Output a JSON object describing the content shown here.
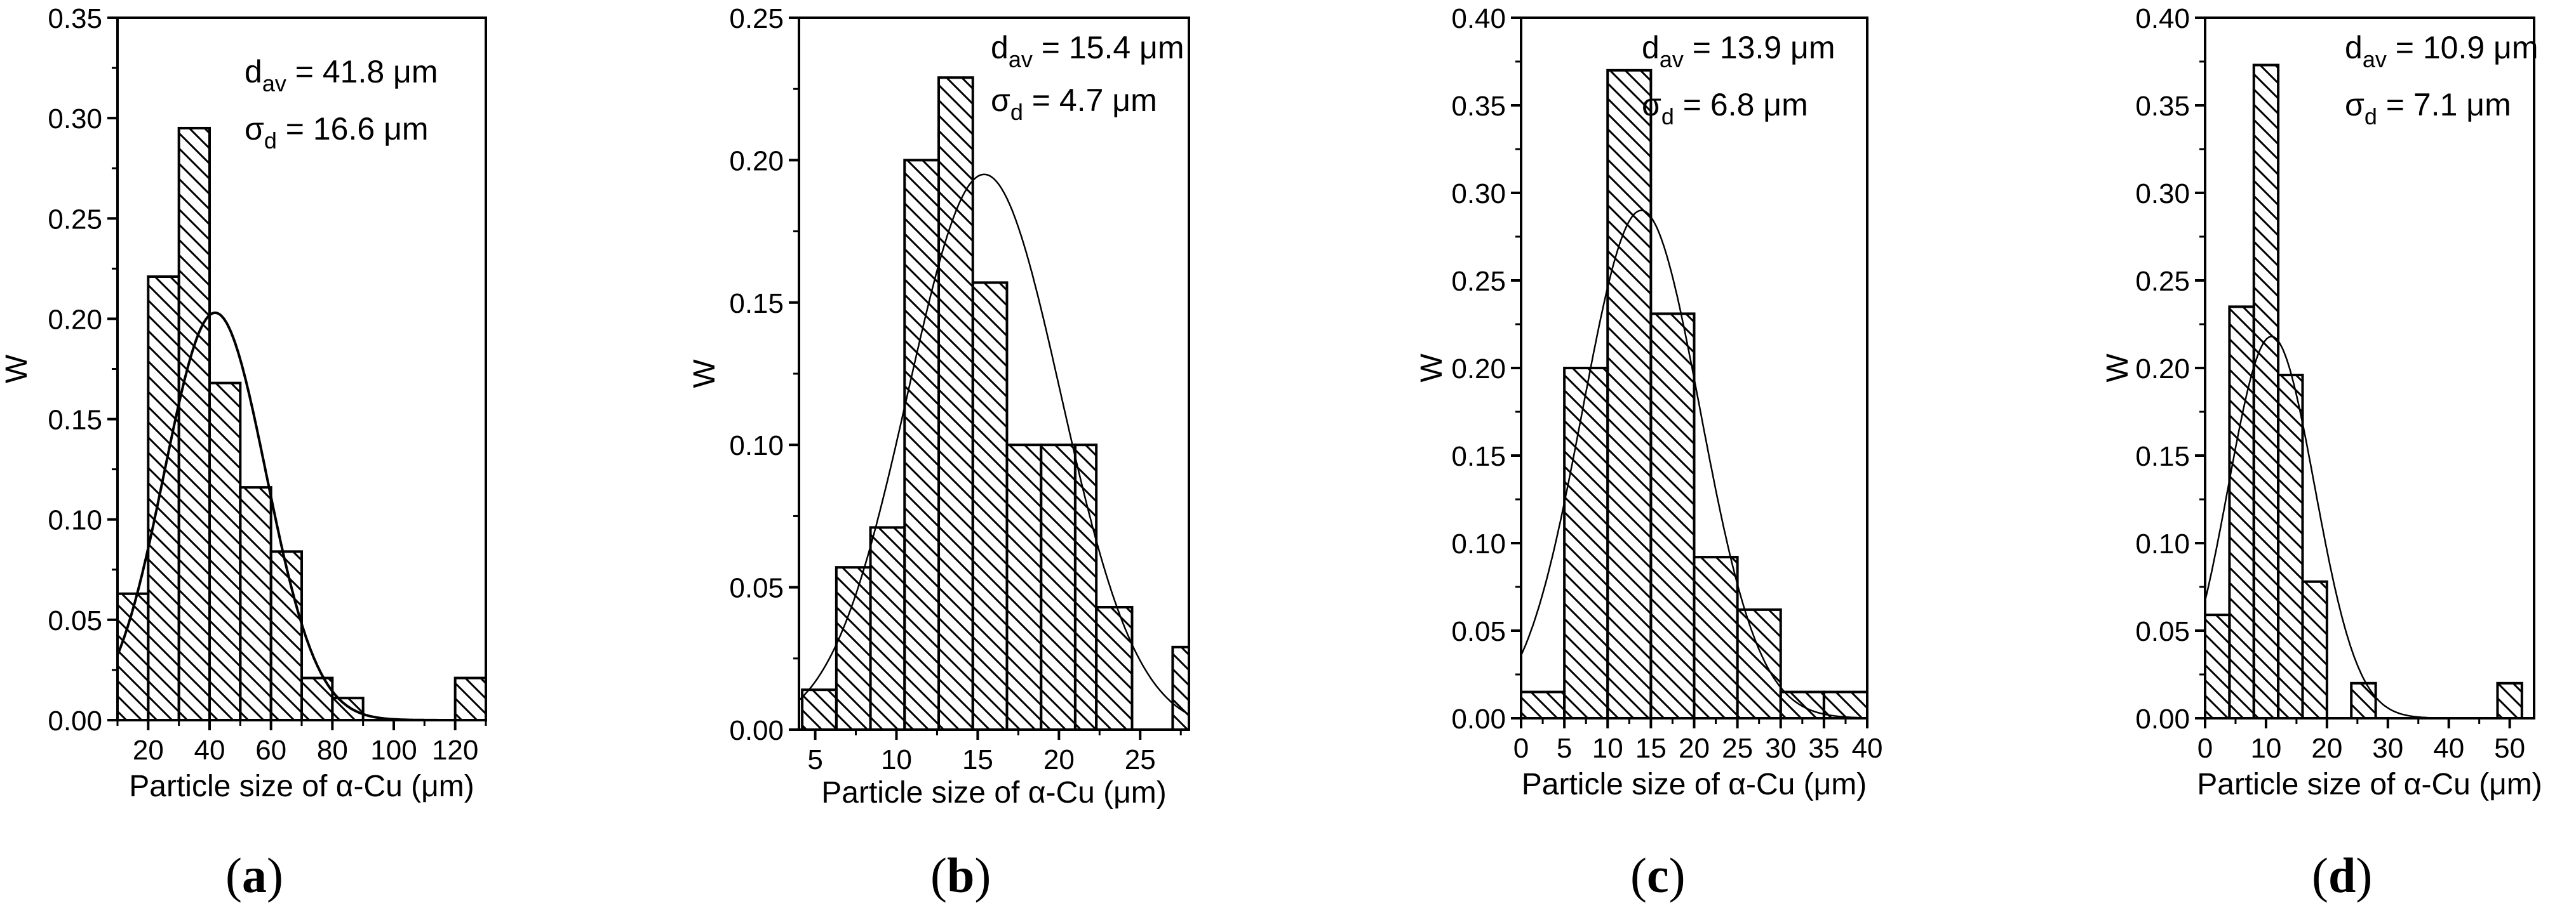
{
  "figure": {
    "panel_labels": [
      {
        "open": "(",
        "letter": "a",
        "close": ")"
      },
      {
        "open": "(",
        "letter": "b",
        "close": ")"
      },
      {
        "open": "(",
        "letter": "c",
        "close": ")"
      },
      {
        "open": "(",
        "letter": "d",
        "close": ")"
      }
    ]
  },
  "chart_data": [
    {
      "type": "bar",
      "panel": "a",
      "xlabel": "Particle size of α-Cu (μm)",
      "ylabel": "W",
      "xlim": [
        10,
        130
      ],
      "ylim": [
        0,
        0.35
      ],
      "xticks": [
        20,
        40,
        60,
        80,
        100,
        120
      ],
      "yticks": [
        0.0,
        0.05,
        0.1,
        0.15,
        0.2,
        0.25,
        0.3,
        0.35
      ],
      "ytick_labels": [
        "0.00",
        "0.05",
        "0.10",
        "0.15",
        "0.20",
        "0.25",
        "0.30",
        "0.35"
      ],
      "bins": [
        [
          10,
          20
        ],
        [
          20,
          30
        ],
        [
          30,
          40
        ],
        [
          40,
          50
        ],
        [
          50,
          60
        ],
        [
          60,
          70
        ],
        [
          70,
          80
        ],
        [
          80,
          90
        ],
        [
          120,
          130
        ]
      ],
      "values": [
        0.063,
        0.221,
        0.295,
        0.168,
        0.116,
        0.084,
        0.021,
        0.011,
        0.021
      ],
      "fit": {
        "type": "gaussian",
        "mean": 41.8,
        "sigma": 16.6,
        "peak": 0.203
      },
      "annotations": [
        {
          "main": "d",
          "sub": "av",
          "text": " = 41.8 μm"
        },
        {
          "main": "σ",
          "sub": "d",
          "text": " = 16.6 μm"
        }
      ]
    },
    {
      "type": "bar",
      "panel": "b",
      "xlabel": "Particle size of α-Cu (μm)",
      "ylabel": "W",
      "xlim": [
        4,
        28
      ],
      "ylim": [
        0,
        0.25
      ],
      "xticks": [
        5,
        10,
        15,
        20,
        25
      ],
      "yticks": [
        0.0,
        0.05,
        0.1,
        0.15,
        0.2,
        0.25
      ],
      "ytick_labels": [
        "0.00",
        "0.05",
        "0.10",
        "0.15",
        "0.20",
        "0.25"
      ],
      "bins": [
        [
          4.2,
          6.3
        ],
        [
          6.3,
          8.4
        ],
        [
          8.4,
          10.5
        ],
        [
          10.5,
          12.6
        ],
        [
          12.6,
          14.7
        ],
        [
          14.7,
          16.8
        ],
        [
          16.8,
          18.9
        ],
        [
          18.9,
          21.0
        ],
        [
          21.0,
          22.3
        ],
        [
          22.3,
          24.5
        ],
        [
          27.0,
          28.0
        ]
      ],
      "values": [
        0.014,
        0.057,
        0.071,
        0.2,
        0.229,
        0.157,
        0.1,
        0.1,
        0.1,
        0.043,
        0.029
      ],
      "fit": {
        "type": "gaussian",
        "mean": 15.4,
        "sigma": 4.7,
        "peak": 0.195
      },
      "annotations": [
        {
          "main": "d",
          "sub": "av",
          "text": " = 15.4 μm"
        },
        {
          "main": "σ",
          "sub": "d",
          "text": " = 4.7 μm"
        }
      ]
    },
    {
      "type": "bar",
      "panel": "c",
      "xlabel": "Particle size of α-Cu (μm)",
      "ylabel": "W",
      "xlim": [
        0,
        40
      ],
      "ylim": [
        0,
        0.4
      ],
      "xticks": [
        0,
        5,
        10,
        15,
        20,
        25,
        30,
        35,
        40
      ],
      "yticks": [
        0.0,
        0.05,
        0.1,
        0.15,
        0.2,
        0.25,
        0.3,
        0.35,
        0.4
      ],
      "ytick_labels": [
        "0.00",
        "0.05",
        "0.10",
        "0.15",
        "0.20",
        "0.25",
        "0.30",
        "0.35",
        "0.40"
      ],
      "bins": [
        [
          0,
          5
        ],
        [
          5,
          10
        ],
        [
          10,
          15
        ],
        [
          15,
          20
        ],
        [
          20,
          25
        ],
        [
          25,
          30
        ],
        [
          30,
          35
        ],
        [
          35,
          40
        ]
      ],
      "values": [
        0.015,
        0.2,
        0.37,
        0.231,
        0.092,
        0.062,
        0.015,
        0.015
      ],
      "fit": {
        "type": "gaussian",
        "mean": 13.9,
        "sigma": 6.8,
        "peak": 0.29
      },
      "annotations": [
        {
          "main": "d",
          "sub": "av",
          "text": " = 13.9 μm"
        },
        {
          "main": "σ",
          "sub": "d",
          "text": " = 6.8 μm"
        }
      ]
    },
    {
      "type": "bar",
      "panel": "d",
      "xlabel": "Particle size of α-Cu (μm)",
      "ylabel": "W",
      "xlim": [
        0,
        54
      ],
      "ylim": [
        0,
        0.4
      ],
      "xticks": [
        0,
        10,
        20,
        30,
        40,
        50
      ],
      "yticks": [
        0.0,
        0.05,
        0.1,
        0.15,
        0.2,
        0.25,
        0.3,
        0.35,
        0.4
      ],
      "ytick_labels": [
        "0.00",
        "0.05",
        "0.10",
        "0.15",
        "0.20",
        "0.25",
        "0.30",
        "0.35",
        "0.40"
      ],
      "bins": [
        [
          0,
          4
        ],
        [
          4,
          8
        ],
        [
          8,
          12
        ],
        [
          12,
          16
        ],
        [
          16,
          20
        ],
        [
          24,
          28
        ],
        [
          48,
          52
        ]
      ],
      "values": [
        0.059,
        0.235,
        0.373,
        0.196,
        0.078,
        0.02,
        0.02
      ],
      "fit": {
        "type": "gaussian",
        "mean": 10.9,
        "sigma": 7.1,
        "peak": 0.218
      },
      "annotations": [
        {
          "main": "d",
          "sub": "av",
          "text": " = 10.9 μm"
        },
        {
          "main": "σ",
          "sub": "d",
          "text": " = 7.1 μm"
        }
      ]
    }
  ]
}
